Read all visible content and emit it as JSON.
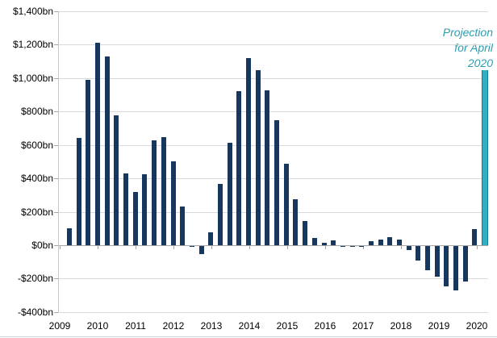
{
  "chart_data": {
    "type": "bar",
    "title": "",
    "unit": "$bn",
    "categories": [
      "2009-Q2",
      "2009-Q3",
      "2009-Q4",
      "2010-Q1",
      "2010-Q2",
      "2010-Q3",
      "2010-Q4",
      "2011-Q1",
      "2011-Q2",
      "2011-Q3",
      "2011-Q4",
      "2012-Q1",
      "2012-Q2",
      "2012-Q3",
      "2012-Q4",
      "2013-Q1",
      "2013-Q2",
      "2013-Q3",
      "2013-Q4",
      "2014-Q1",
      "2014-Q2",
      "2014-Q3",
      "2014-Q4",
      "2015-Q1",
      "2015-Q2",
      "2015-Q3",
      "2015-Q4",
      "2016-Q1",
      "2016-Q2",
      "2016-Q3",
      "2016-Q4",
      "2017-Q1",
      "2017-Q2",
      "2017-Q3",
      "2017-Q4",
      "2018-Q1",
      "2018-Q2",
      "2018-Q3",
      "2018-Q4",
      "2019-Q1",
      "2019-Q2",
      "2019-Q3",
      "2019-Q4",
      "2020-Q1",
      "2020-Apr-projection"
    ],
    "values": [
      100,
      640,
      990,
      1210,
      1130,
      775,
      430,
      320,
      425,
      630,
      645,
      500,
      230,
      -10,
      -55,
      75,
      365,
      615,
      920,
      1120,
      1050,
      925,
      750,
      490,
      275,
      145,
      45,
      15,
      30,
      -5,
      -5,
      -10,
      25,
      35,
      50,
      35,
      -30,
      -90,
      -150,
      -190,
      -245,
      -270,
      -215,
      95,
      1050
    ],
    "projection_index": 44,
    "ylim": [
      -400,
      1400
    ],
    "grid": true,
    "y_ticks": [
      {
        "value": 1400,
        "label": "$1,400bn"
      },
      {
        "value": 1200,
        "label": "$1,200bn"
      },
      {
        "value": 1000,
        "label": "$1,000bn"
      },
      {
        "value": 800,
        "label": "$800bn"
      },
      {
        "value": 600,
        "label": "$600bn"
      },
      {
        "value": 400,
        "label": "$400bn"
      },
      {
        "value": 200,
        "label": "$200bn"
      },
      {
        "value": 0,
        "label": "$0bn"
      },
      {
        "value": -200,
        "label": "-$200bn"
      },
      {
        "value": -400,
        "label": "-$400bn"
      }
    ],
    "x_year_labels": [
      "2009",
      "2010",
      "2011",
      "2012",
      "2013",
      "2014",
      "2015",
      "2016",
      "2017",
      "2018",
      "2019",
      "2020"
    ],
    "annotation": {
      "lines": [
        "Projection",
        "for April",
        "2020"
      ]
    },
    "colors": {
      "bar": "#17375e",
      "projection_fill": "#2fafbf",
      "projection_border": "#0f7e8e",
      "annotation_text": "#2e9db0",
      "gridline": "#d9d9d9",
      "axis": "#a6a6a6",
      "label_text": "#000000"
    }
  }
}
